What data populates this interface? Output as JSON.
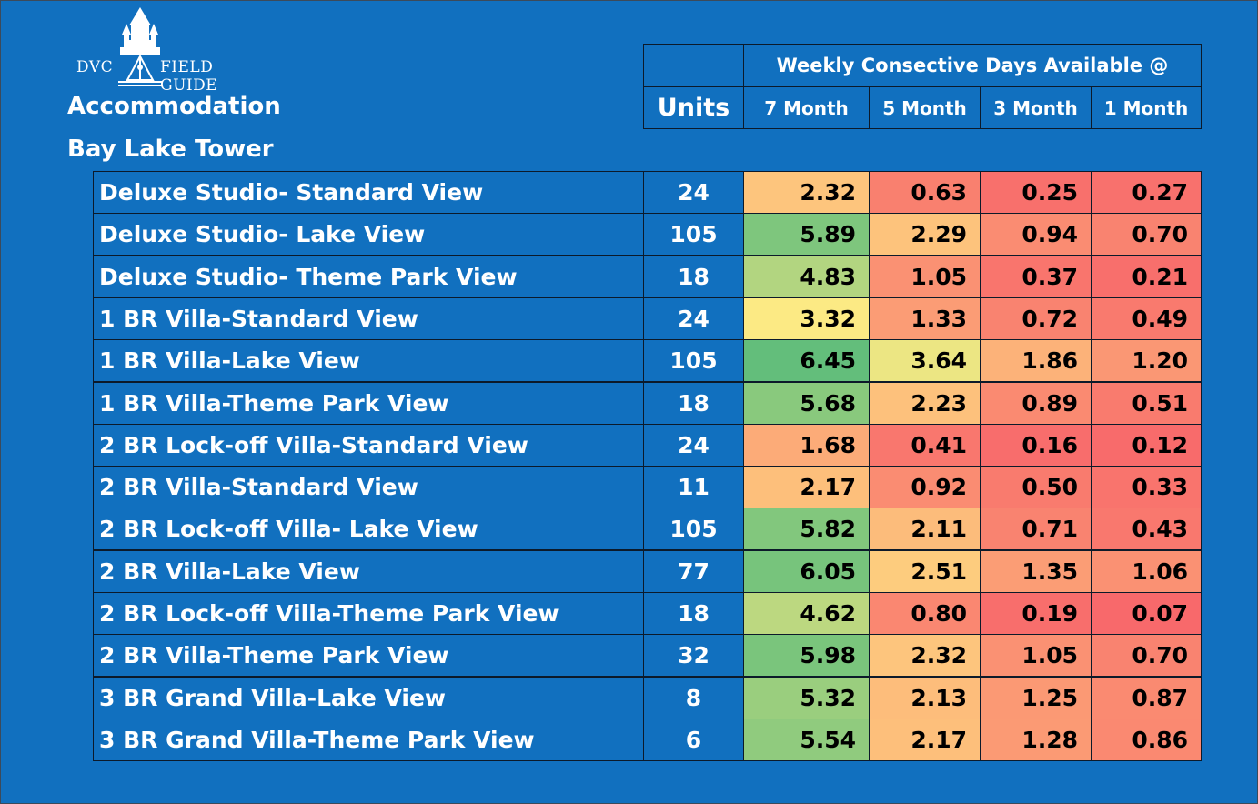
{
  "logo": {
    "left_text": "DVC",
    "right_text": "FIELD GUIDE"
  },
  "headings": {
    "accommodation": "Accommodation",
    "resort": "Bay Lake Tower"
  },
  "chart_data": {
    "type": "table",
    "group_header": "Weekly Consective Days Available @",
    "units_header": "Units",
    "columns": [
      "7 Month",
      "5 Month",
      "3 Month",
      "1 Month"
    ],
    "rows": [
      {
        "name": "Deluxe Studio- Standard View",
        "units": "24",
        "values": [
          "2.32",
          "0.63",
          "0.25",
          "0.27"
        ]
      },
      {
        "name": "Deluxe Studio- Lake View",
        "units": "105",
        "values": [
          "5.89",
          "2.29",
          "0.94",
          "0.70"
        ]
      },
      {
        "name": "Deluxe Studio- Theme Park View",
        "units": "18",
        "values": [
          "4.83",
          "1.05",
          "0.37",
          "0.21"
        ]
      },
      {
        "name": "1 BR Villa-Standard View",
        "units": "24",
        "values": [
          "3.32",
          "1.33",
          "0.72",
          "0.49"
        ]
      },
      {
        "name": "1 BR Villa-Lake View",
        "units": "105",
        "values": [
          "6.45",
          "3.64",
          "1.86",
          "1.20"
        ]
      },
      {
        "name": "1 BR Villa-Theme Park View",
        "units": "18",
        "values": [
          "5.68",
          "2.23",
          "0.89",
          "0.51"
        ]
      },
      {
        "name": "2 BR Lock-off Villa-Standard View",
        "units": "24",
        "values": [
          "1.68",
          "0.41",
          "0.16",
          "0.12"
        ]
      },
      {
        "name": "2 BR Villa-Standard View",
        "units": "11",
        "values": [
          "2.17",
          "0.92",
          "0.50",
          "0.33"
        ]
      },
      {
        "name": "2 BR Lock-off Villa- Lake View",
        "units": "105",
        "values": [
          "5.82",
          "2.11",
          "0.71",
          "0.43"
        ]
      },
      {
        "name": "2 BR Villa-Lake View",
        "units": "77",
        "values": [
          "6.05",
          "2.51",
          "1.35",
          "1.06"
        ]
      },
      {
        "name": "2 BR Lock-off Villa-Theme Park View",
        "units": "18",
        "values": [
          "4.62",
          "0.80",
          "0.19",
          "0.07"
        ]
      },
      {
        "name": "2 BR Villa-Theme Park View",
        "units": "32",
        "values": [
          "5.98",
          "2.32",
          "1.05",
          "0.70"
        ]
      },
      {
        "name": "3 BR Grand Villa-Lake View",
        "units": "8",
        "values": [
          "5.32",
          "2.13",
          "1.25",
          "0.87"
        ]
      },
      {
        "name": "3 BR Grand Villa-Theme Park View",
        "units": "6",
        "values": [
          "5.54",
          "2.17",
          "1.28",
          "0.86"
        ]
      }
    ],
    "color_scale": {
      "low": "#f8696b",
      "mid": "#ffeb84",
      "high": "#63be7b",
      "min": 0.07,
      "max": 6.45
    }
  },
  "colors": {
    "background": "#1170bf",
    "border": "#0c1a2a",
    "text": "#ffffff"
  }
}
